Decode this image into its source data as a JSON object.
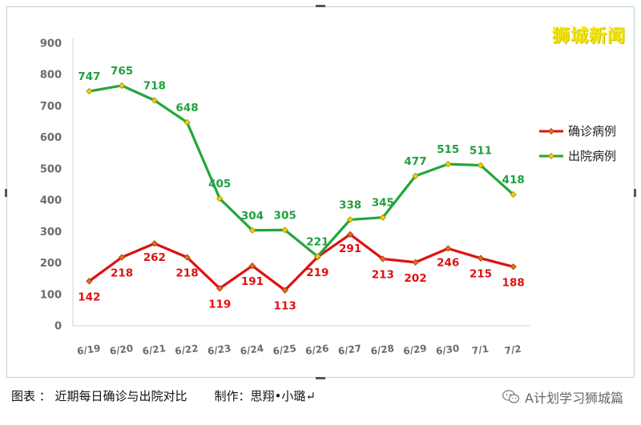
{
  "watermark": "狮城新闻",
  "caption": {
    "figure_label": "图表 ： 近期每日确诊与出院对比",
    "author": "制作：思翔•小璐↵"
  },
  "wechat": {
    "icon": "wechat-icon",
    "account": "A计划学习狮城篇"
  },
  "colors": {
    "confirmed": "#e01010",
    "discharged": "#22a63c",
    "marker": "#f2cf00",
    "axis_text": "#6b6b6b"
  },
  "chart_data": {
    "type": "line",
    "categories": [
      "6/19",
      "6/20",
      "6/21",
      "6/22",
      "6/23",
      "6/24",
      "6/25",
      "6/26",
      "6/27",
      "6/28",
      "6/29",
      "6/30",
      "7/1",
      "7/2"
    ],
    "ylim": [
      0,
      900
    ],
    "yticks": [
      0,
      100,
      200,
      300,
      400,
      500,
      600,
      700,
      800,
      900
    ],
    "grid": false,
    "legend_position": "right",
    "series": [
      {
        "name": "确诊病例",
        "values": [
          142,
          218,
          262,
          218,
          119,
          191,
          113,
          219,
          291,
          213,
          202,
          246,
          215,
          188
        ]
      },
      {
        "name": "出院病例",
        "values": [
          747,
          765,
          718,
          648,
          405,
          304,
          305,
          221,
          338,
          345,
          477,
          515,
          511,
          418
        ]
      }
    ]
  }
}
